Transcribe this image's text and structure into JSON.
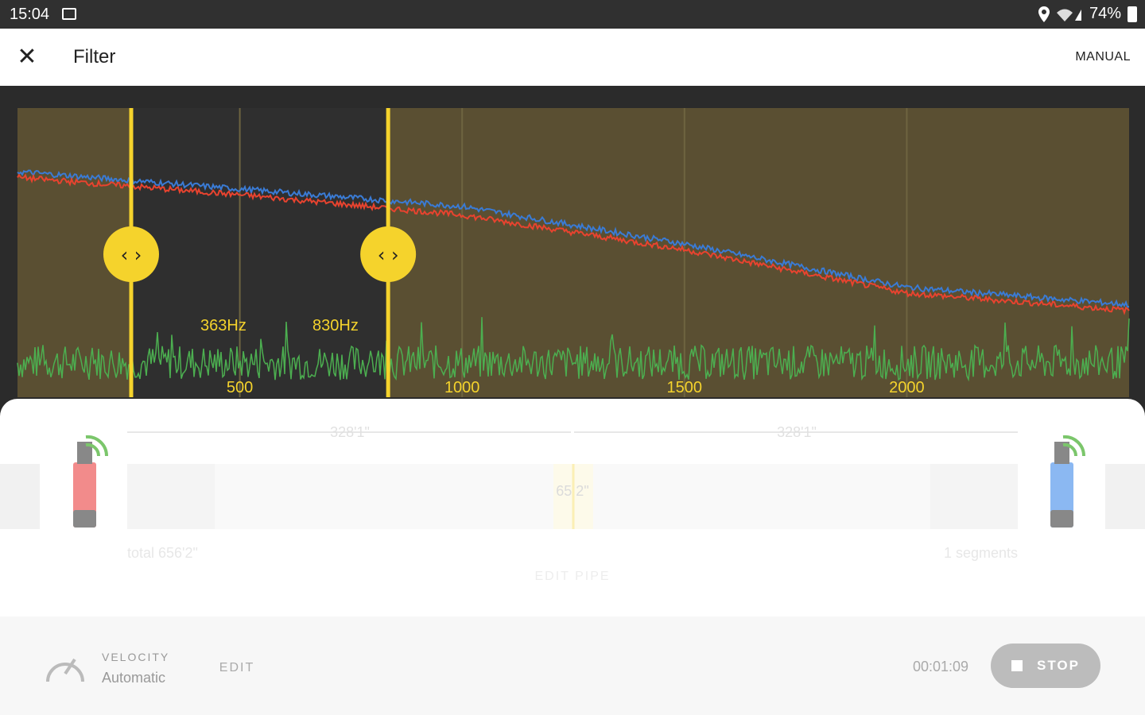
{
  "status_bar": {
    "time": "15:04",
    "battery": "74%"
  },
  "app_bar": {
    "title": "Filter",
    "action_label": "MANUAL"
  },
  "filter": {
    "low_cutoff_label": "363Hz",
    "high_cutoff_label": "830Hz",
    "low_cutoff_hz": 363,
    "high_cutoff_hz": 830
  },
  "chart_data": {
    "type": "line",
    "x_ticks": [
      "500",
      "1000",
      "1500",
      "2000"
    ],
    "xlim": [
      0,
      2500
    ],
    "series": [
      {
        "color": "#3a7bd5",
        "x": [
          0,
          500,
          1000,
          1500,
          2000,
          2500
        ],
        "values": [
          0.78,
          0.72,
          0.66,
          0.53,
          0.38,
          0.32
        ]
      },
      {
        "color": "#e8432f",
        "x": [
          0,
          500,
          1000,
          1500,
          2000,
          2500
        ],
        "values": [
          0.76,
          0.7,
          0.63,
          0.51,
          0.36,
          0.3
        ]
      },
      {
        "color": "#4caf50",
        "note_free": true,
        "x": [
          0,
          2500
        ],
        "values": [
          0.12,
          0.12
        ]
      }
    ]
  },
  "pipe": {
    "left_span": "328'1\"",
    "right_span": "328'1\"",
    "center_label": "65 2\"",
    "total_label": "total 656'2\"",
    "segments_label": "1 segments",
    "edit_pipe_label": "EDIT PIPE"
  },
  "velocity": {
    "label": "VELOCITY",
    "value": "Automatic",
    "edit_label": "EDIT"
  },
  "recording": {
    "elapsed": "00:01:09",
    "stop_label": "STOP"
  },
  "colors": {
    "accent": "#f5d32c",
    "sensor_left": "#f28b8b",
    "sensor_right": "#8bb8f2"
  }
}
